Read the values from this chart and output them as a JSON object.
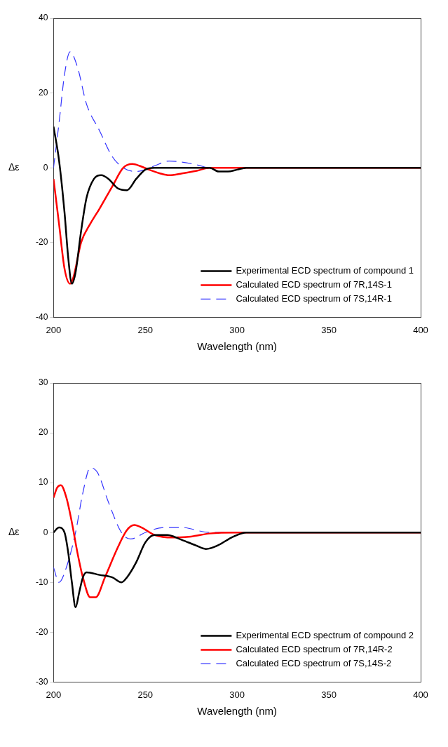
{
  "chart_data": [
    {
      "type": "line",
      "xlabel": "Wavelength (nm)",
      "ylabel": "Δε",
      "xlim": [
        200,
        400
      ],
      "xticks": [
        200,
        250,
        300,
        350,
        400
      ],
      "ylim": [
        -40,
        40
      ],
      "yticks": [
        -40,
        -20,
        0,
        20,
        40
      ],
      "grid": false,
      "legend": "bottom right",
      "marker": "none",
      "series": [
        {
          "name": "Experimental ECD spectrum of compound 1",
          "color": "#000000",
          "line_style": "solid",
          "x": [
            200,
            203,
            206,
            208,
            210,
            212,
            215,
            218,
            222,
            226,
            230,
            235,
            240,
            245,
            250,
            255,
            270,
            285,
            290,
            295,
            300,
            305,
            320,
            400
          ],
          "values": [
            11,
            2,
            -12,
            -24,
            -31,
            -28,
            -17,
            -8,
            -3,
            -2,
            -3,
            -5.5,
            -6,
            -3,
            -0.5,
            0,
            0,
            0,
            -1,
            -1,
            -0.5,
            0,
            0,
            0
          ]
        },
        {
          "name": "Calculated ECD spectrum of 7R,14S-1",
          "color": "#ff0000",
          "line_style": "solid",
          "x": [
            200,
            203,
            206,
            209,
            211,
            215,
            220,
            225,
            232,
            238,
            243,
            247,
            252,
            258,
            263,
            270,
            278,
            285,
            300,
            400
          ],
          "values": [
            -3,
            -15,
            -27,
            -31,
            -29,
            -20,
            -15,
            -11,
            -5,
            0,
            1,
            0.5,
            -0.5,
            -1.5,
            -2,
            -1.5,
            -0.8,
            0,
            0,
            0
          ]
        },
        {
          "name": "Calculated ECD spectrum of 7S,14R-1",
          "color": "#3333ff",
          "line_style": "dashed",
          "x": [
            200,
            203,
            206,
            209,
            213,
            218,
            225,
            232,
            238,
            245,
            250,
            255,
            263,
            270,
            278,
            285,
            300,
            400
          ],
          "values": [
            0,
            12,
            25,
            31,
            27,
            17,
            10,
            3,
            0,
            -1,
            -0.5,
            0.5,
            1.8,
            1.5,
            0.8,
            0,
            0,
            0
          ]
        }
      ]
    },
    {
      "type": "line",
      "xlabel": "Wavelength (nm)",
      "ylabel": "Δε",
      "xlim": [
        200,
        400
      ],
      "xticks": [
        200,
        250,
        300,
        350,
        400
      ],
      "ylim": [
        -30,
        30
      ],
      "yticks": [
        -30,
        -20,
        -10,
        0,
        10,
        20,
        30
      ],
      "grid": false,
      "legend": "bottom right",
      "marker": "none",
      "series": [
        {
          "name": "Experimental ECD spectrum of compound 2",
          "color": "#000000",
          "line_style": "solid",
          "x": [
            200,
            203,
            206,
            208,
            210,
            212,
            214,
            216,
            218,
            225,
            232,
            237,
            240,
            245,
            250,
            255,
            262,
            270,
            277,
            283,
            290,
            297,
            305,
            400
          ],
          "values": [
            0,
            1,
            0,
            -4,
            -10,
            -15,
            -12,
            -9,
            -8,
            -8.5,
            -9,
            -10,
            -9,
            -6,
            -2,
            -0.5,
            -0.5,
            -1.5,
            -2.5,
            -3.3,
            -2.5,
            -1,
            0,
            0
          ]
        },
        {
          "name": "Calculated ECD spectrum of 7R,14R-2",
          "color": "#ff0000",
          "line_style": "solid",
          "x": [
            200,
            202,
            204,
            207,
            210,
            213,
            216,
            220,
            223,
            228,
            235,
            240,
            244,
            248,
            255,
            265,
            275,
            285,
            300,
            400
          ],
          "values": [
            7,
            9,
            9.5,
            7,
            2,
            -4,
            -9,
            -13,
            -13,
            -9,
            -3,
            0.5,
            1.5,
            1,
            -0.5,
            -1,
            -0.8,
            -0.2,
            0,
            0
          ]
        },
        {
          "name": "Calculated ECD spectrum of 7S,14S-2",
          "color": "#3333ff",
          "line_style": "dashed",
          "x": [
            200,
            203,
            207,
            212,
            216,
            220,
            224,
            230,
            237,
            242,
            250,
            260,
            270,
            285,
            300,
            400
          ],
          "values": [
            -7,
            -10,
            -7,
            0,
            8,
            13,
            12,
            6,
            0,
            -1.3,
            0,
            1,
            1,
            0,
            0,
            0
          ]
        }
      ]
    }
  ]
}
